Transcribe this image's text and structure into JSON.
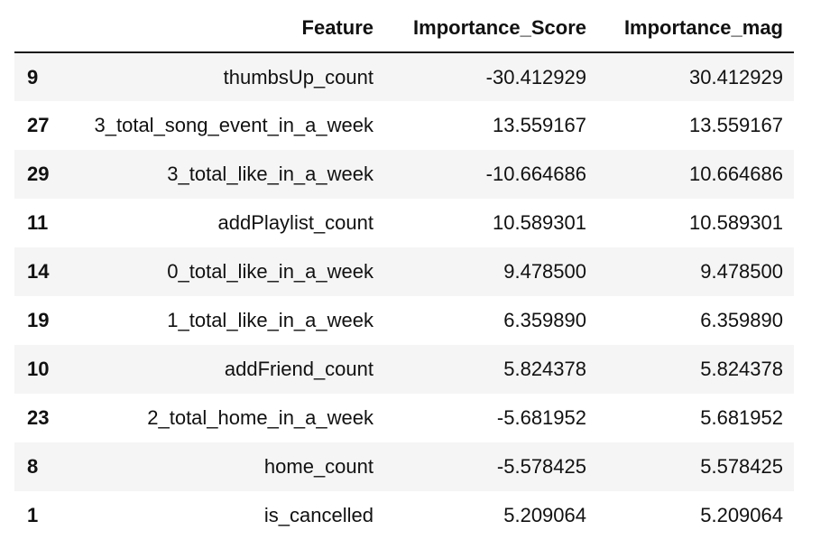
{
  "table": {
    "columns": [
      "",
      "Feature",
      "Importance_Score",
      "Importance_mag"
    ],
    "rows": [
      {
        "index": "9",
        "feature": "thumbsUp_count",
        "score": "-30.412929",
        "mag": "30.412929"
      },
      {
        "index": "27",
        "feature": "3_total_song_event_in_a_week",
        "score": "13.559167",
        "mag": "13.559167"
      },
      {
        "index": "29",
        "feature": "3_total_like_in_a_week",
        "score": "-10.664686",
        "mag": "10.664686"
      },
      {
        "index": "11",
        "feature": "addPlaylist_count",
        "score": "10.589301",
        "mag": "10.589301"
      },
      {
        "index": "14",
        "feature": "0_total_like_in_a_week",
        "score": "9.478500",
        "mag": "9.478500"
      },
      {
        "index": "19",
        "feature": "1_total_like_in_a_week",
        "score": "6.359890",
        "mag": "6.359890"
      },
      {
        "index": "10",
        "feature": "addFriend_count",
        "score": "5.824378",
        "mag": "5.824378"
      },
      {
        "index": "23",
        "feature": "2_total_home_in_a_week",
        "score": "-5.681952",
        "mag": "5.681952"
      },
      {
        "index": "8",
        "feature": "home_count",
        "score": "-5.578425",
        "mag": "5.578425"
      },
      {
        "index": "1",
        "feature": "is_cancelled",
        "score": "5.209064",
        "mag": "5.209064"
      }
    ]
  }
}
